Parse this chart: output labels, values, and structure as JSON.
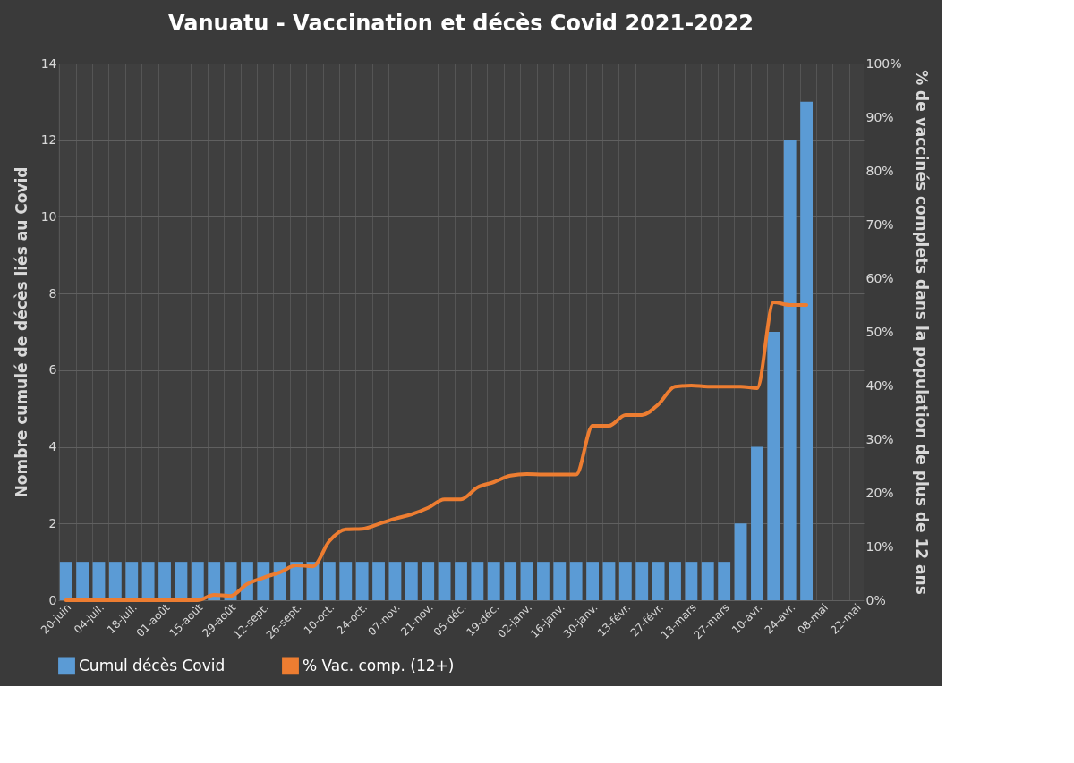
{
  "chart_data": {
    "type": "bar",
    "title": "Vanuatu - Vaccination et décès Covid 2021-2022",
    "ylabel": "Nombre cumulé de décès liés au Covid",
    "y2label": "% de vaccinés complets dans  la population de plus de 12 ans",
    "categories": [
      "20-juin",
      null,
      "04-juil.",
      null,
      "18-juil.",
      null,
      "01-août",
      null,
      "15-août",
      null,
      "29-août",
      null,
      "12-sept.",
      null,
      "26-sept.",
      null,
      "10-oct.",
      null,
      "24-oct.",
      null,
      "07-nov.",
      null,
      "21-nov.",
      null,
      "05-déc.",
      null,
      "19-déc.",
      null,
      "02-janv.",
      null,
      "16-janv.",
      null,
      "30-janv.",
      null,
      "13-févr.",
      null,
      "27-févr.",
      null,
      "13-mars",
      null,
      "27-mars",
      null,
      "10-avr.",
      null,
      "24-avr.",
      null,
      "08-mai",
      null,
      "22-mai"
    ],
    "series": [
      {
        "name": "Cumul décès Covid",
        "color": "#5b9bd5",
        "values": [
          1,
          1,
          1,
          1,
          1,
          1,
          1,
          1,
          1,
          1,
          1,
          1,
          1,
          1,
          1,
          1,
          1,
          1,
          1,
          1,
          1,
          1,
          1,
          1,
          1,
          1,
          1,
          1,
          1,
          1,
          1,
          1,
          1,
          1,
          1,
          1,
          1,
          1,
          1,
          1,
          1,
          2,
          4,
          7,
          12,
          13,
          null,
          null,
          null
        ]
      },
      {
        "name": "% Vac. comp. (12+)",
        "type": "line",
        "axis": "y2",
        "color": "#ed7d31",
        "values": [
          0,
          0,
          0,
          0,
          0,
          0,
          0,
          0,
          0,
          1,
          0.8,
          3,
          4.2,
          5.2,
          6.5,
          6.3,
          11,
          13.2,
          13.3,
          14.2,
          15.2,
          16,
          17.2,
          18.8,
          18.8,
          21,
          22,
          23.2,
          23.5,
          23.4,
          23.4,
          23.4,
          32.5,
          32.5,
          34.5,
          34.5,
          36.5,
          39.8,
          40,
          39.8,
          39.8,
          39.8,
          39.5,
          55.5,
          55,
          55,
          null,
          null,
          null
        ]
      }
    ],
    "ylim": [
      0,
      14
    ],
    "yticks": [
      0,
      2,
      4,
      6,
      8,
      10,
      12,
      14
    ],
    "y2lim": [
      0,
      100
    ],
    "y2ticks": [
      {
        "value": 0,
        "label": "0%"
      },
      {
        "value": 10,
        "label": "10%"
      },
      {
        "value": 20,
        "label": "20%"
      },
      {
        "value": 30,
        "label": "30%"
      },
      {
        "value": 40,
        "label": "40%"
      },
      {
        "value": 50,
        "label": "50%"
      },
      {
        "value": 60,
        "label": "60%"
      },
      {
        "value": 70,
        "label": "70%"
      },
      {
        "value": 80,
        "label": "80%"
      },
      {
        "value": 90,
        "label": "90%"
      },
      {
        "value": 100,
        "label": "100%"
      }
    ],
    "grid": true,
    "legend": "bottom",
    "marker": "none",
    "line_style": "solid"
  }
}
